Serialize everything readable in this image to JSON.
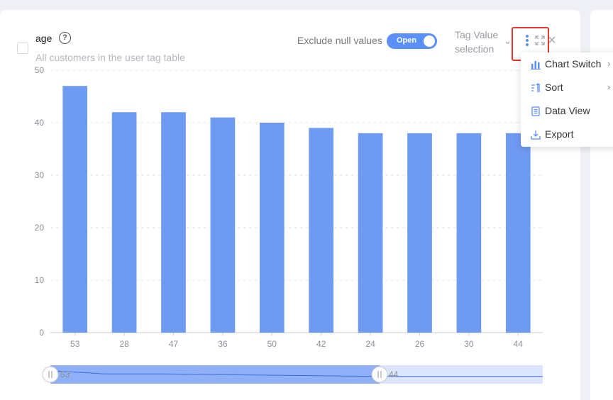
{
  "card": {
    "title": "age",
    "help_glyph": "?",
    "subtitle": "All customers in the user tag table",
    "exclude_label": "Exclude null values",
    "toggle_label": "Open",
    "tag_select_placeholder": "Tag Value selection"
  },
  "menu": {
    "items": [
      {
        "label": "Chart Switch",
        "icon": "bar-chart-icon",
        "has_submenu": true
      },
      {
        "label": "Sort",
        "icon": "sort-icon",
        "has_submenu": true
      },
      {
        "label": "Data View",
        "icon": "document-icon",
        "has_submenu": false
      },
      {
        "label": "Export",
        "icon": "download-icon",
        "has_submenu": false
      }
    ]
  },
  "chart_data": {
    "type": "bar",
    "categories": [
      "53",
      "28",
      "47",
      "36",
      "50",
      "42",
      "24",
      "26",
      "30",
      "44"
    ],
    "values": [
      47,
      42,
      42,
      41,
      40,
      39,
      38,
      38,
      38,
      38
    ],
    "ylim": [
      0,
      50
    ],
    "yticks": [
      0,
      10,
      20,
      30,
      40,
      50
    ],
    "grid": true,
    "bar_color": "#6f9af2",
    "slider": {
      "start_label": "53",
      "end_label": "44"
    }
  },
  "colors": {
    "accent": "#5b8ff9",
    "highlight": "#e2372c"
  }
}
